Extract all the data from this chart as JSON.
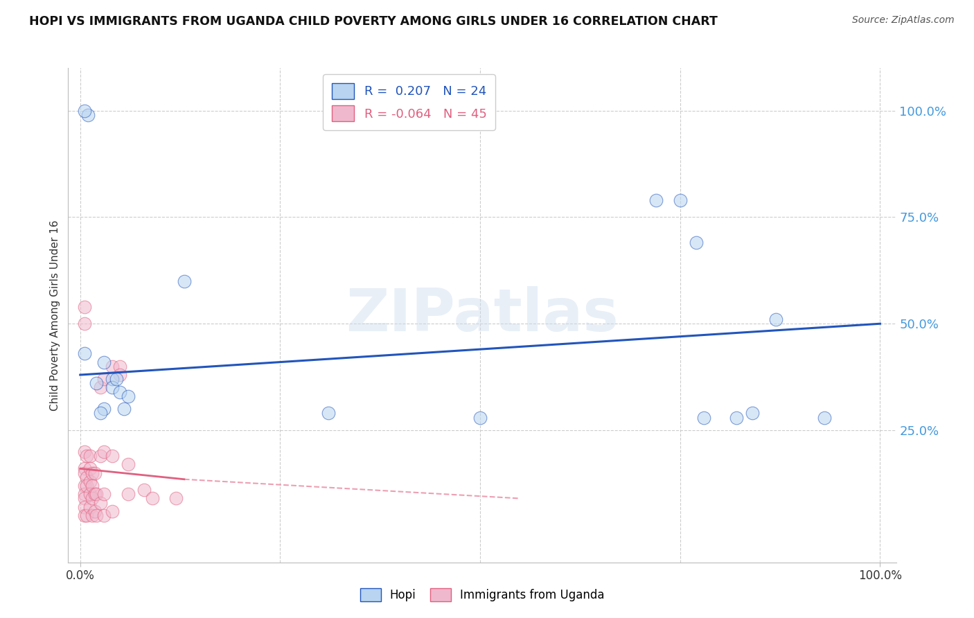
{
  "title": "HOPI VS IMMIGRANTS FROM UGANDA CHILD POVERTY AMONG GIRLS UNDER 16 CORRELATION CHART",
  "source": "Source: ZipAtlas.com",
  "ylabel": "Child Poverty Among Girls Under 16",
  "watermark": "ZIPatlas",
  "hopi_R": 0.207,
  "hopi_N": 24,
  "uganda_R": -0.064,
  "uganda_N": 45,
  "hopi_color": "#b8d4f0",
  "uganda_color": "#f0b8cc",
  "hopi_line_color": "#2255bb",
  "uganda_line_color": "#e06080",
  "hopi_scatter_x": [
    0.005,
    0.03,
    0.02,
    0.04,
    0.04,
    0.05,
    0.06,
    0.055,
    0.03,
    0.025,
    0.045,
    0.13,
    0.31,
    0.5,
    0.72,
    0.75,
    0.77,
    0.78,
    0.82,
    0.84,
    0.87,
    0.93,
    0.01,
    0.005
  ],
  "hopi_scatter_y": [
    0.43,
    0.41,
    0.36,
    0.37,
    0.35,
    0.34,
    0.33,
    0.3,
    0.3,
    0.29,
    0.37,
    0.6,
    0.29,
    0.28,
    0.79,
    0.79,
    0.69,
    0.28,
    0.28,
    0.29,
    0.51,
    0.28,
    0.99,
    1.0
  ],
  "uganda_scatter_x": [
    0.005,
    0.005,
    0.005,
    0.005,
    0.005,
    0.005,
    0.005,
    0.005,
    0.005,
    0.005,
    0.008,
    0.008,
    0.008,
    0.008,
    0.012,
    0.012,
    0.012,
    0.012,
    0.012,
    0.015,
    0.015,
    0.015,
    0.015,
    0.018,
    0.018,
    0.018,
    0.02,
    0.02,
    0.025,
    0.025,
    0.025,
    0.03,
    0.03,
    0.03,
    0.03,
    0.04,
    0.04,
    0.04,
    0.05,
    0.05,
    0.06,
    0.06,
    0.08,
    0.09,
    0.12
  ],
  "uganda_scatter_y": [
    0.54,
    0.5,
    0.2,
    0.16,
    0.15,
    0.12,
    0.1,
    0.09,
    0.07,
    0.05,
    0.19,
    0.14,
    0.12,
    0.05,
    0.19,
    0.16,
    0.13,
    0.1,
    0.07,
    0.15,
    0.12,
    0.09,
    0.05,
    0.15,
    0.1,
    0.06,
    0.1,
    0.05,
    0.35,
    0.19,
    0.08,
    0.37,
    0.2,
    0.1,
    0.05,
    0.4,
    0.19,
    0.06,
    0.4,
    0.38,
    0.17,
    0.1,
    0.11,
    0.09,
    0.09
  ],
  "hopi_line_x": [
    0.0,
    1.0
  ],
  "hopi_line_y": [
    0.38,
    0.5
  ],
  "uganda_line_x": [
    0.0,
    0.5
  ],
  "uganda_line_y": [
    0.155,
    0.115
  ],
  "ytick_values": [
    1.0,
    0.75,
    0.5,
    0.25
  ],
  "ytick_labels": [
    "100.0%",
    "75.0%",
    "50.0%",
    "25.0%"
  ],
  "bg_color": "#ffffff",
  "grid_color": "#cccccc",
  "right_axis_color": "#4499dd",
  "title_color": "#111111",
  "watermark_color": "#ccdcee",
  "watermark_alpha": 0.45,
  "xlim": [
    -0.015,
    1.02
  ],
  "ylim": [
    -0.06,
    1.1
  ]
}
